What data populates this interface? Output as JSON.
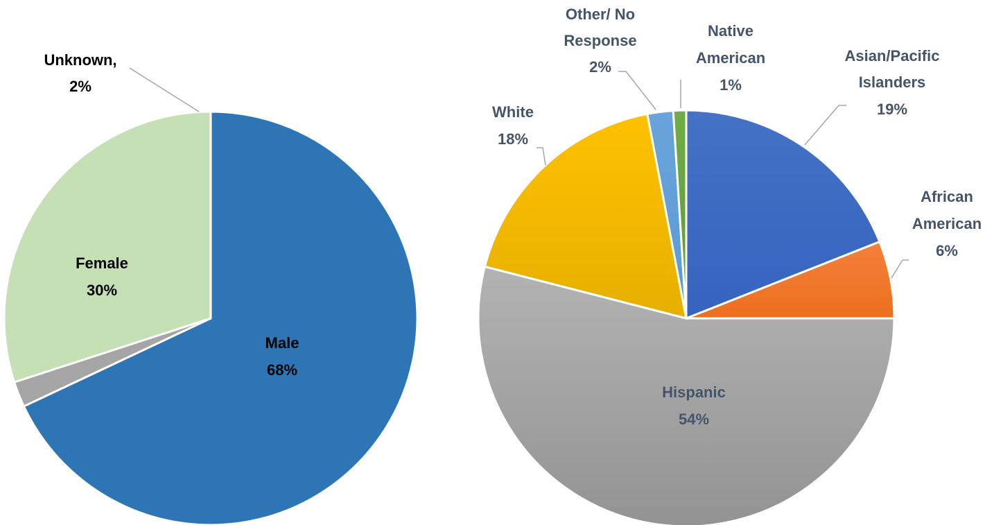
{
  "chart_data": [
    {
      "type": "pie",
      "slices": [
        {
          "label": "Male",
          "pct": "68%",
          "value": 68,
          "color": "#2e75b6",
          "label_color": "#000000"
        },
        {
          "label": "Unknown,",
          "pct": "2%",
          "value": 2,
          "color": "#a5a5a5",
          "label_color": "#000000"
        },
        {
          "label": "Female",
          "pct": "30%",
          "value": 30,
          "color": "#c5e0b4",
          "label_color": "#000000"
        }
      ],
      "start_angle_deg": 0,
      "direction": "clockwise"
    },
    {
      "type": "pie",
      "slices": [
        {
          "label": "Asian/Pacific Islanders",
          "pct": "19%",
          "value": 19,
          "color": "#4472c4",
          "gradient_to": "#3563c0",
          "label_color": "#44546a"
        },
        {
          "label": "African American",
          "pct": "6%",
          "value": 6,
          "color": "#f4803a",
          "gradient_to": "#ec6f1e",
          "label_color": "#44546a"
        },
        {
          "label": "Hispanic",
          "pct": "54%",
          "value": 54,
          "color": "#b3b3b3",
          "gradient_to": "#939393",
          "label_color": "#44546a"
        },
        {
          "label": "White",
          "pct": "18%",
          "value": 18,
          "color": "#ffc000",
          "gradient_to": "#e6b000",
          "label_color": "#44546a"
        },
        {
          "label": "Other/ No Response",
          "pct": "2%",
          "value": 2,
          "color": "#6aa3da",
          "gradient_to": "#5b9bd5",
          "label_color": "#44546a"
        },
        {
          "label": "Native American",
          "pct": "1%",
          "value": 1,
          "color": "#70ad47",
          "gradient_to": "#5e9a3a",
          "label_color": "#44546a"
        }
      ],
      "start_angle_deg": 0,
      "direction": "clockwise"
    }
  ]
}
